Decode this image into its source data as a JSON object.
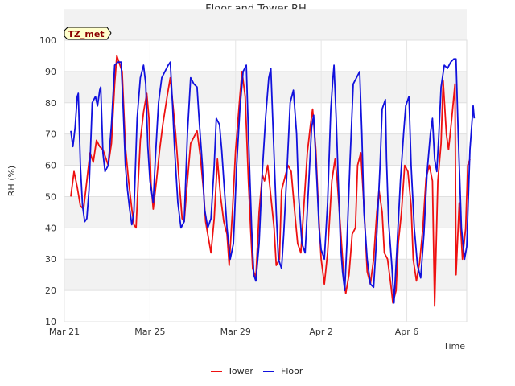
{
  "chart_data": {
    "type": "line",
    "title": "Floor and Tower RH",
    "xlabel": "Time",
    "ylabel": "RH (%)",
    "ylim": [
      10,
      100
    ],
    "yticks": [
      10,
      20,
      30,
      40,
      50,
      60,
      70,
      80,
      90,
      100
    ],
    "xlim": [
      0,
      18.8
    ],
    "xticks": [
      {
        "day": 0,
        "label": "Mar 21"
      },
      {
        "day": 4,
        "label": "Mar 25"
      },
      {
        "day": 8,
        "label": "Mar 29"
      },
      {
        "day": 12,
        "label": "Apr 2"
      },
      {
        "day": 16,
        "label": "Apr 6"
      }
    ],
    "annotation": "TZ_met",
    "legend": [
      "Tower",
      "Floor"
    ],
    "series": [
      {
        "name": "Tower",
        "color": "#ee1111",
        "points": [
          [
            0.3,
            50
          ],
          [
            0.45,
            58
          ],
          [
            0.6,
            53
          ],
          [
            0.75,
            47
          ],
          [
            0.9,
            46
          ],
          [
            1.05,
            55
          ],
          [
            1.2,
            64
          ],
          [
            1.35,
            61
          ],
          [
            1.5,
            68
          ],
          [
            1.65,
            66
          ],
          [
            1.8,
            65
          ],
          [
            1.95,
            62
          ],
          [
            2.05,
            60
          ],
          [
            2.2,
            67
          ],
          [
            2.35,
            86
          ],
          [
            2.45,
            95
          ],
          [
            2.6,
            92
          ],
          [
            2.7,
            90
          ],
          [
            2.85,
            66
          ],
          [
            3.0,
            55
          ],
          [
            3.15,
            46
          ],
          [
            3.25,
            41
          ],
          [
            3.35,
            40
          ],
          [
            3.45,
            55
          ],
          [
            3.55,
            68
          ],
          [
            3.7,
            77
          ],
          [
            3.85,
            83
          ],
          [
            3.95,
            75
          ],
          [
            4.05,
            54
          ],
          [
            4.15,
            46
          ],
          [
            4.3,
            55
          ],
          [
            4.45,
            65
          ],
          [
            4.6,
            73
          ],
          [
            4.8,
            82
          ],
          [
            4.95,
            88
          ],
          [
            5.05,
            81
          ],
          [
            5.2,
            70
          ],
          [
            5.35,
            56
          ],
          [
            5.5,
            43
          ],
          [
            5.6,
            42
          ],
          [
            5.75,
            55
          ],
          [
            5.9,
            67
          ],
          [
            6.05,
            69
          ],
          [
            6.2,
            71
          ],
          [
            6.35,
            63
          ],
          [
            6.5,
            52
          ],
          [
            6.6,
            42
          ],
          [
            6.75,
            36
          ],
          [
            6.85,
            32
          ],
          [
            7.0,
            43
          ],
          [
            7.15,
            62
          ],
          [
            7.3,
            50
          ],
          [
            7.45,
            42
          ],
          [
            7.6,
            38
          ],
          [
            7.7,
            28
          ],
          [
            7.85,
            45
          ],
          [
            8.0,
            65
          ],
          [
            8.2,
            82
          ],
          [
            8.3,
            90
          ],
          [
            8.45,
            82
          ],
          [
            8.6,
            55
          ],
          [
            8.7,
            40
          ],
          [
            8.8,
            27
          ],
          [
            8.95,
            24
          ],
          [
            9.1,
            45
          ],
          [
            9.25,
            57
          ],
          [
            9.35,
            55
          ],
          [
            9.5,
            60
          ],
          [
            9.65,
            50
          ],
          [
            9.8,
            40
          ],
          [
            9.9,
            28
          ],
          [
            10.05,
            30
          ],
          [
            10.15,
            52
          ],
          [
            10.3,
            56
          ],
          [
            10.45,
            60
          ],
          [
            10.6,
            58
          ],
          [
            10.75,
            46
          ],
          [
            10.9,
            35
          ],
          [
            11.05,
            32
          ],
          [
            11.2,
            48
          ],
          [
            11.35,
            64
          ],
          [
            11.5,
            73
          ],
          [
            11.6,
            78
          ],
          [
            11.75,
            65
          ],
          [
            11.9,
            42
          ],
          [
            12.0,
            30
          ],
          [
            12.15,
            22
          ],
          [
            12.3,
            32
          ],
          [
            12.5,
            55
          ],
          [
            12.65,
            62
          ],
          [
            12.75,
            55
          ],
          [
            12.9,
            40
          ],
          [
            13.05,
            25
          ],
          [
            13.15,
            19
          ],
          [
            13.3,
            25
          ],
          [
            13.45,
            38
          ],
          [
            13.6,
            40
          ],
          [
            13.7,
            60
          ],
          [
            13.85,
            64
          ],
          [
            14.0,
            47
          ],
          [
            14.15,
            26
          ],
          [
            14.3,
            22
          ],
          [
            14.45,
            30
          ],
          [
            14.6,
            45
          ],
          [
            14.7,
            52
          ],
          [
            14.85,
            45
          ],
          [
            14.95,
            32
          ],
          [
            15.1,
            30
          ],
          [
            15.25,
            22
          ],
          [
            15.35,
            16
          ],
          [
            15.5,
            20
          ],
          [
            15.6,
            35
          ],
          [
            15.75,
            45
          ],
          [
            15.9,
            60
          ],
          [
            16.05,
            58
          ],
          [
            16.2,
            47
          ],
          [
            16.3,
            30
          ],
          [
            16.45,
            23
          ],
          [
            16.6,
            29
          ],
          [
            16.75,
            40
          ],
          [
            16.9,
            56
          ],
          [
            17.05,
            60
          ],
          [
            17.2,
            55
          ],
          [
            17.3,
            15
          ],
          [
            17.45,
            55
          ],
          [
            17.6,
            67
          ],
          [
            17.7,
            87
          ],
          [
            17.85,
            70
          ],
          [
            17.95,
            65
          ],
          [
            18.1,
            75
          ],
          [
            18.25,
            86
          ],
          [
            18.3,
            25
          ],
          [
            18.45,
            48
          ],
          [
            18.6,
            30
          ],
          [
            18.75,
            40
          ],
          [
            18.85,
            60
          ],
          [
            18.95,
            62
          ]
        ]
      },
      {
        "name": "Floor",
        "color": "#1111dd",
        "points": [
          [
            0.3,
            71
          ],
          [
            0.4,
            66
          ],
          [
            0.5,
            72
          ],
          [
            0.6,
            82
          ],
          [
            0.65,
            83
          ],
          [
            0.75,
            60
          ],
          [
            0.85,
            47
          ],
          [
            0.95,
            42
          ],
          [
            1.05,
            43
          ],
          [
            1.15,
            52
          ],
          [
            1.3,
            80
          ],
          [
            1.45,
            82
          ],
          [
            1.55,
            79
          ],
          [
            1.65,
            84
          ],
          [
            1.7,
            85
          ],
          [
            1.8,
            64
          ],
          [
            1.9,
            58
          ],
          [
            2.05,
            60
          ],
          [
            2.2,
            73
          ],
          [
            2.35,
            92
          ],
          [
            2.5,
            93
          ],
          [
            2.65,
            93
          ],
          [
            2.75,
            78
          ],
          [
            2.85,
            60
          ],
          [
            2.95,
            52
          ],
          [
            3.05,
            46
          ],
          [
            3.15,
            41
          ],
          [
            3.25,
            45
          ],
          [
            3.4,
            75
          ],
          [
            3.55,
            88
          ],
          [
            3.7,
            92
          ],
          [
            3.8,
            86
          ],
          [
            3.9,
            66
          ],
          [
            4.0,
            55
          ],
          [
            4.15,
            48
          ],
          [
            4.25,
            62
          ],
          [
            4.4,
            80
          ],
          [
            4.55,
            88
          ],
          [
            4.7,
            90
          ],
          [
            4.85,
            92
          ],
          [
            4.95,
            93
          ],
          [
            5.05,
            80
          ],
          [
            5.15,
            65
          ],
          [
            5.3,
            48
          ],
          [
            5.45,
            40
          ],
          [
            5.6,
            42
          ],
          [
            5.75,
            70
          ],
          [
            5.9,
            88
          ],
          [
            6.05,
            86
          ],
          [
            6.2,
            85
          ],
          [
            6.3,
            74
          ],
          [
            6.45,
            60
          ],
          [
            6.55,
            46
          ],
          [
            6.7,
            40
          ],
          [
            6.85,
            43
          ],
          [
            7.0,
            60
          ],
          [
            7.1,
            75
          ],
          [
            7.25,
            73
          ],
          [
            7.35,
            65
          ],
          [
            7.45,
            55
          ],
          [
            7.6,
            40
          ],
          [
            7.75,
            30
          ],
          [
            7.9,
            35
          ],
          [
            8.05,
            60
          ],
          [
            8.2,
            78
          ],
          [
            8.35,
            90
          ],
          [
            8.5,
            92
          ],
          [
            8.6,
            70
          ],
          [
            8.75,
            40
          ],
          [
            8.85,
            25
          ],
          [
            8.95,
            23
          ],
          [
            9.1,
            35
          ],
          [
            9.25,
            58
          ],
          [
            9.4,
            75
          ],
          [
            9.55,
            88
          ],
          [
            9.65,
            91
          ],
          [
            9.75,
            72
          ],
          [
            9.9,
            45
          ],
          [
            10.0,
            30
          ],
          [
            10.15,
            27
          ],
          [
            10.25,
            38
          ],
          [
            10.4,
            58
          ],
          [
            10.55,
            80
          ],
          [
            10.7,
            84
          ],
          [
            10.85,
            70
          ],
          [
            10.95,
            50
          ],
          [
            11.1,
            35
          ],
          [
            11.25,
            32
          ],
          [
            11.4,
            52
          ],
          [
            11.55,
            72
          ],
          [
            11.65,
            76
          ],
          [
            11.8,
            55
          ],
          [
            11.9,
            40
          ],
          [
            12.0,
            33
          ],
          [
            12.15,
            30
          ],
          [
            12.3,
            48
          ],
          [
            12.45,
            78
          ],
          [
            12.55,
            88
          ],
          [
            12.6,
            92
          ],
          [
            12.7,
            75
          ],
          [
            12.8,
            55
          ],
          [
            12.9,
            35
          ],
          [
            13.0,
            26
          ],
          [
            13.1,
            20
          ],
          [
            13.2,
            35
          ],
          [
            13.35,
            62
          ],
          [
            13.5,
            86
          ],
          [
            13.65,
            88
          ],
          [
            13.8,
            90
          ],
          [
            13.9,
            70
          ],
          [
            14.0,
            45
          ],
          [
            14.15,
            30
          ],
          [
            14.3,
            22
          ],
          [
            14.45,
            21
          ],
          [
            14.6,
            38
          ],
          [
            14.75,
            60
          ],
          [
            14.85,
            78
          ],
          [
            15.0,
            81
          ],
          [
            15.05,
            62
          ],
          [
            15.15,
            42
          ],
          [
            15.3,
            28
          ],
          [
            15.4,
            16
          ],
          [
            15.55,
            35
          ],
          [
            15.7,
            55
          ],
          [
            15.85,
            70
          ],
          [
            15.95,
            79
          ],
          [
            16.1,
            82
          ],
          [
            16.2,
            60
          ],
          [
            16.35,
            40
          ],
          [
            16.5,
            28
          ],
          [
            16.65,
            24
          ],
          [
            16.8,
            38
          ],
          [
            16.95,
            58
          ],
          [
            17.1,
            70
          ],
          [
            17.2,
            75
          ],
          [
            17.3,
            62
          ],
          [
            17.4,
            58
          ],
          [
            17.5,
            70
          ],
          [
            17.6,
            85
          ],
          [
            17.75,
            92
          ],
          [
            17.9,
            91
          ],
          [
            18.05,
            93
          ],
          [
            18.2,
            94
          ],
          [
            18.3,
            94
          ],
          [
            18.4,
            70
          ],
          [
            18.55,
            40
          ],
          [
            18.7,
            30
          ],
          [
            18.8,
            34
          ],
          [
            18.95,
            65
          ],
          [
            19.1,
            79
          ],
          [
            19.15,
            75
          ]
        ]
      }
    ]
  }
}
